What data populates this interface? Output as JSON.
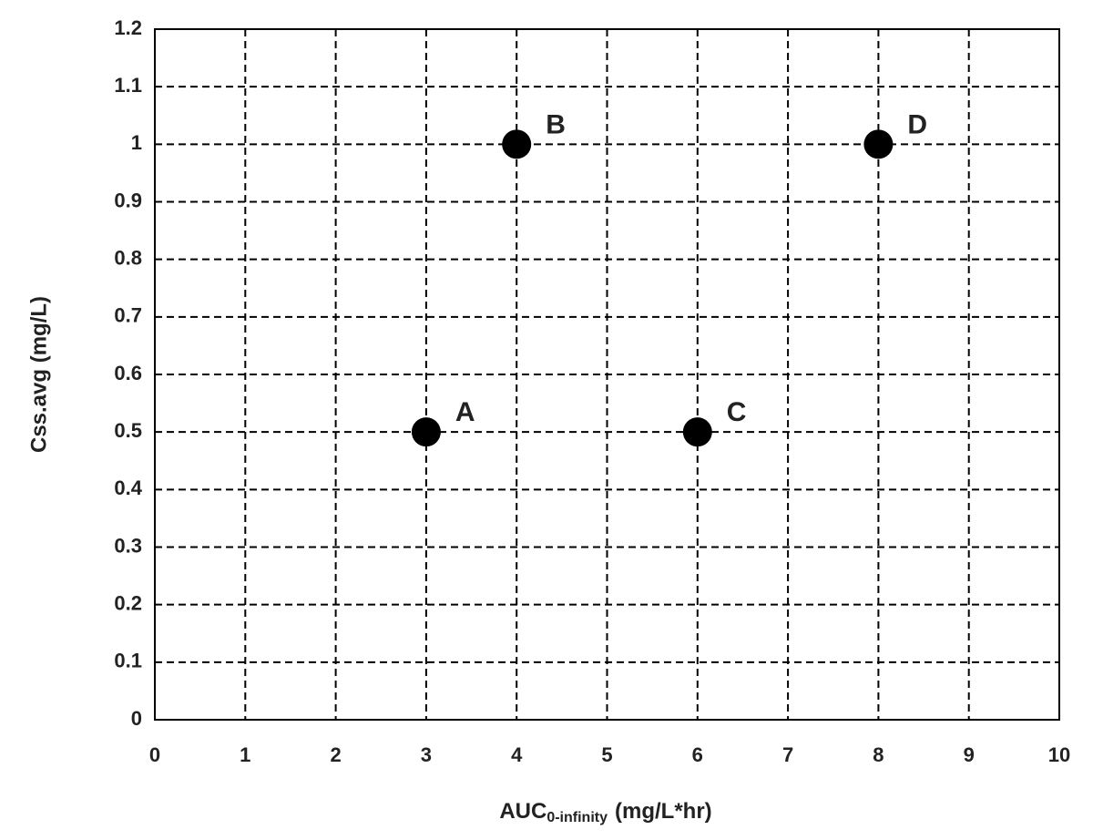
{
  "chart_data": {
    "type": "scatter",
    "xlabel": [
      "AUC",
      "0-infinity",
      "(mg/L*hr)"
    ],
    "ylabel": "Css.avg (mg/L)",
    "x": [
      3,
      4,
      6,
      8
    ],
    "values": [
      0.5,
      1,
      0.5,
      1
    ],
    "point_labels": [
      "A",
      "B",
      "C",
      "D"
    ],
    "color": "#000000",
    "xlim": [
      0,
      10
    ],
    "xticks": [
      0,
      1,
      2,
      3,
      4,
      5,
      6,
      7,
      8,
      9,
      10
    ],
    "ylim": [
      0,
      1.2
    ],
    "yticks": [
      0,
      0.1,
      0.2,
      0.3,
      0.4,
      0.5,
      0.6,
      0.7,
      0.8,
      0.9,
      1,
      1.1,
      1.2
    ],
    "grid": true
  }
}
